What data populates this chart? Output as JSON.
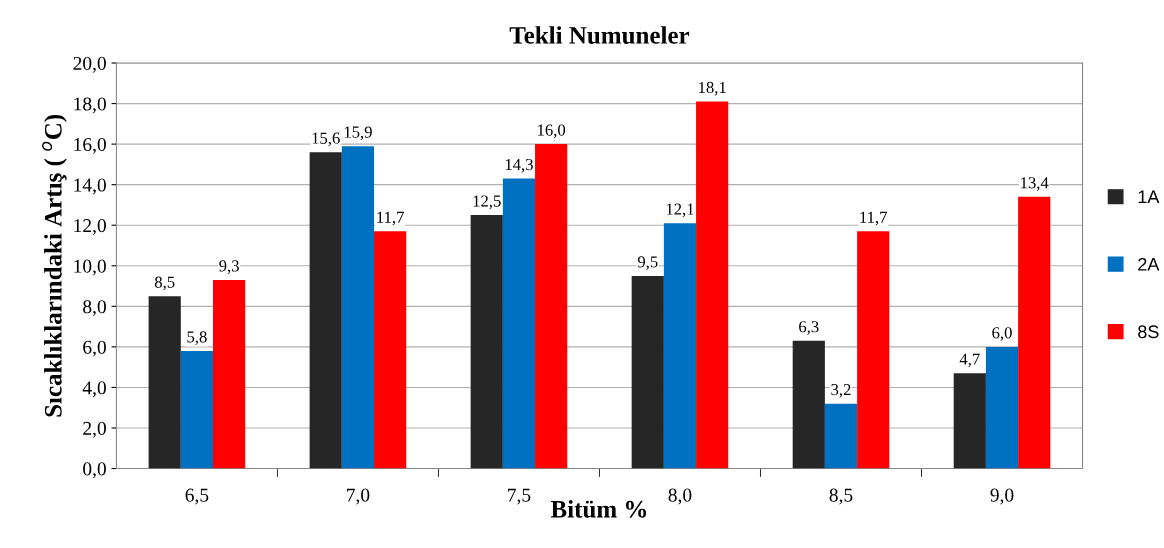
{
  "chart_data": {
    "type": "bar",
    "title": "Tekli Numuneler",
    "xlabel": "Bitüm %",
    "ylabel": "Sıcaklıklarındaki Artış ( $^{o}$C)",
    "categories": [
      "6,5",
      "7,0",
      "7,5",
      "8,0",
      "8,5",
      "9,0"
    ],
    "series": [
      {
        "name": "1A",
        "color": "#262626",
        "values": [
          8.5,
          15.6,
          12.5,
          9.5,
          6.3,
          4.7
        ],
        "value_labels": [
          "8,5",
          "15,6",
          "12,5",
          "9,5",
          "6,3",
          "4,7"
        ]
      },
      {
        "name": "2A",
        "color": "#0070c0",
        "values": [
          5.8,
          15.9,
          14.3,
          12.1,
          3.2,
          6.0
        ],
        "value_labels": [
          "5,8",
          "15,9",
          "14,3",
          "12,1",
          "3,2",
          "6,0"
        ]
      },
      {
        "name": "8S",
        "color": "#ff0000",
        "values": [
          9.3,
          11.7,
          16.0,
          18.1,
          11.7,
          13.4
        ],
        "value_labels": [
          "9,3",
          "11,7",
          "16,0",
          "18,1",
          "11,7",
          "13,4"
        ]
      }
    ],
    "ylim": [
      0,
      20
    ],
    "yticks": [
      {
        "value": 0,
        "label": "0,0"
      },
      {
        "value": 2,
        "label": "2,0"
      },
      {
        "value": 4,
        "label": "4,0"
      },
      {
        "value": 6,
        "label": "6,0"
      },
      {
        "value": 8,
        "label": "8,0"
      },
      {
        "value": 10,
        "label": "10,0"
      },
      {
        "value": 12,
        "label": "12,0"
      },
      {
        "value": 14,
        "label": "14,0"
      },
      {
        "value": 16,
        "label": "16,0"
      },
      {
        "value": 18,
        "label": "18,0"
      },
      {
        "value": 20,
        "label": "20,0"
      }
    ],
    "grid": "y",
    "legend": "right"
  }
}
